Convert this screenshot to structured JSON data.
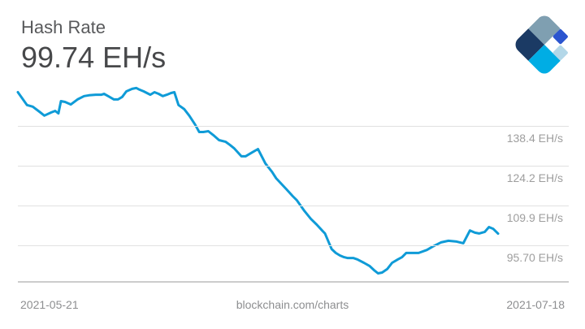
{
  "header": {
    "title": "Hash Rate",
    "value": "99.74 EH/s"
  },
  "logo": {
    "name": "blockchain.com logo",
    "colors": {
      "slate": "#7F9FB1",
      "navy": "#1B3A64",
      "cyan": "#00ADE4",
      "royal": "#2B55CF",
      "pale": "#B3D7E8"
    }
  },
  "footer": {
    "left": "2021-05-21",
    "center": "blockchain.com/charts",
    "right": "2021-07-18"
  },
  "chart_data": {
    "type": "line",
    "title": "Hash Rate",
    "current_value": 99.74,
    "unit": "EH/s",
    "line_color": "#0f9bd7",
    "grid": true,
    "legend_position": "none",
    "x_start_label": "2021-05-21",
    "x_end_label": "2021-07-18",
    "x_range_days": 58,
    "ylim": [
      82,
      155
    ],
    "gridlines": [
      {
        "value": 138.4,
        "label": "138.4 EH/s"
      },
      {
        "value": 124.2,
        "label": "124.2 EH/s"
      },
      {
        "value": 109.9,
        "label": "109.9 EH/s"
      },
      {
        "value": 95.7,
        "label": "95.70 EH/s"
      }
    ],
    "points": [
      [
        0,
        150.5
      ],
      [
        1.1,
        145.9
      ],
      [
        1.8,
        145.3
      ],
      [
        2.6,
        143.5
      ],
      [
        3.2,
        142.1
      ],
      [
        4.0,
        143.2
      ],
      [
        4.5,
        143.8
      ],
      [
        4.9,
        142.9
      ],
      [
        5.2,
        147.3
      ],
      [
        5.7,
        147.0
      ],
      [
        6.4,
        146.1
      ],
      [
        7.2,
        147.9
      ],
      [
        8.0,
        149.1
      ],
      [
        8.6,
        149.4
      ],
      [
        9.4,
        149.6
      ],
      [
        10.1,
        149.6
      ],
      [
        10.4,
        149.9
      ],
      [
        10.9,
        149.1
      ],
      [
        11.6,
        147.9
      ],
      [
        12.1,
        147.9
      ],
      [
        12.6,
        148.8
      ],
      [
        13.1,
        150.8
      ],
      [
        13.8,
        151.7
      ],
      [
        14.3,
        152.0
      ],
      [
        14.7,
        151.4
      ],
      [
        15.2,
        150.8
      ],
      [
        16.0,
        149.6
      ],
      [
        16.5,
        150.5
      ],
      [
        17.0,
        149.9
      ],
      [
        17.5,
        149.1
      ],
      [
        18.0,
        149.6
      ],
      [
        18.5,
        150.2
      ],
      [
        18.9,
        150.5
      ],
      [
        19.4,
        145.9
      ],
      [
        20.1,
        144.4
      ],
      [
        20.7,
        142.1
      ],
      [
        21.4,
        138.9
      ],
      [
        21.9,
        136.2
      ],
      [
        22.4,
        136.2
      ],
      [
        23.0,
        136.5
      ],
      [
        23.6,
        135.1
      ],
      [
        24.3,
        133.3
      ],
      [
        25.1,
        132.7
      ],
      [
        25.6,
        131.6
      ],
      [
        26.1,
        130.4
      ],
      [
        27.0,
        127.5
      ],
      [
        27.5,
        127.5
      ],
      [
        28.3,
        128.9
      ],
      [
        29.0,
        130.1
      ],
      [
        29.9,
        124.9
      ],
      [
        30.7,
        121.9
      ],
      [
        31.2,
        119.6
      ],
      [
        32.4,
        115.8
      ],
      [
        33.2,
        113.2
      ],
      [
        33.7,
        111.7
      ],
      [
        34.6,
        107.9
      ],
      [
        35.4,
        105.0
      ],
      [
        36.1,
        103.0
      ],
      [
        36.8,
        100.7
      ],
      [
        37.1,
        99.8
      ],
      [
        37.6,
        96.3
      ],
      [
        37.9,
        94.2
      ],
      [
        38.4,
        92.8
      ],
      [
        38.9,
        91.9
      ],
      [
        39.4,
        91.3
      ],
      [
        39.8,
        91.0
      ],
      [
        40.5,
        91.0
      ],
      [
        41.0,
        90.5
      ],
      [
        41.8,
        89.3
      ],
      [
        42.5,
        88.1
      ],
      [
        43.0,
        86.7
      ],
      [
        43.5,
        85.5
      ],
      [
        44.0,
        85.8
      ],
      [
        44.6,
        87.0
      ],
      [
        45.2,
        89.3
      ],
      [
        45.9,
        90.5
      ],
      [
        46.4,
        91.3
      ],
      [
        46.9,
        92.8
      ],
      [
        47.7,
        92.8
      ],
      [
        48.4,
        92.8
      ],
      [
        49.4,
        93.9
      ],
      [
        50.1,
        95.1
      ],
      [
        51.1,
        96.6
      ],
      [
        52.0,
        97.2
      ],
      [
        53.0,
        96.9
      ],
      [
        53.8,
        96.3
      ],
      [
        54.6,
        100.9
      ],
      [
        55.2,
        100.1
      ],
      [
        55.7,
        99.8
      ],
      [
        56.4,
        100.4
      ],
      [
        56.9,
        102.1
      ],
      [
        57.4,
        101.5
      ],
      [
        58,
        99.74
      ]
    ]
  }
}
